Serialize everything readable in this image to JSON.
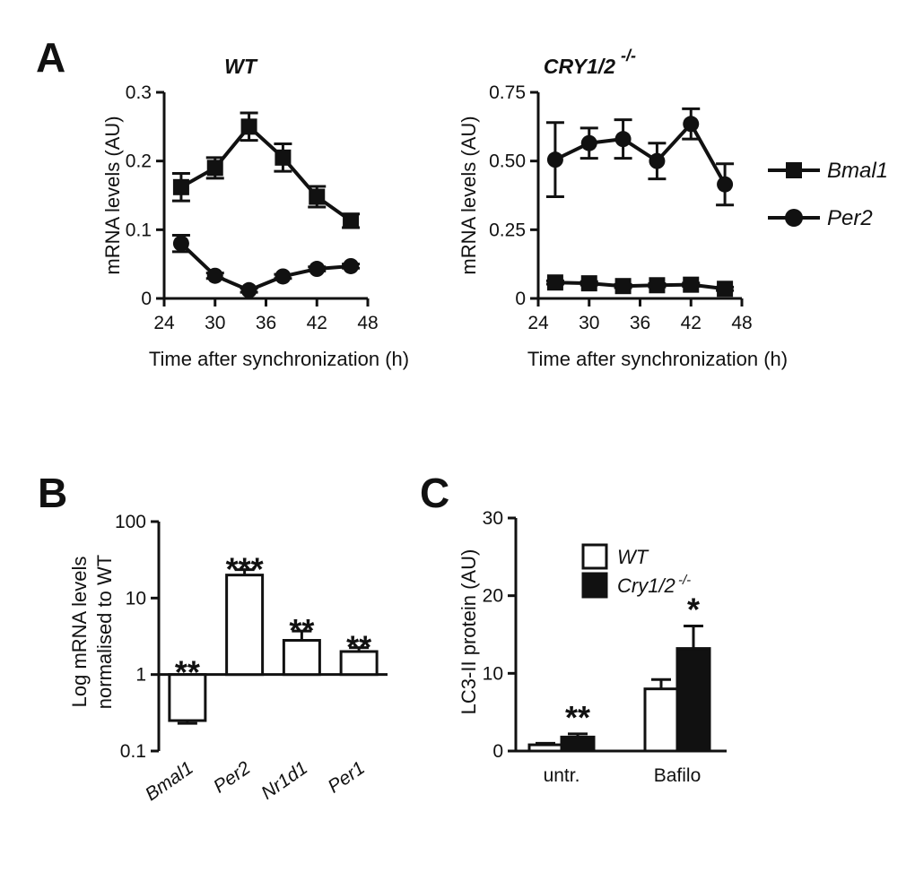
{
  "panels": {
    "a": "A",
    "b": "B",
    "c": "C"
  },
  "chart_data": [
    {
      "id": "A-WT",
      "type": "line",
      "title": "WT",
      "xlabel": "Time after synchronization (h)",
      "ylabel": "mRNA levels (AU)",
      "xlim": [
        24,
        48
      ],
      "ylim": [
        0,
        0.3
      ],
      "xticks": [
        "24",
        "30",
        "36",
        "42",
        "48"
      ],
      "yticks": [
        "0",
        "0.1",
        "0.2",
        "0.3"
      ],
      "x": [
        26,
        30,
        34,
        38,
        42,
        46
      ],
      "series": [
        {
          "name": "Bmal1",
          "marker": "square",
          "values": [
            0.162,
            0.19,
            0.25,
            0.205,
            0.148,
            0.113
          ],
          "errors": [
            0.02,
            0.015,
            0.02,
            0.02,
            0.015,
            0.01
          ]
        },
        {
          "name": "Per2",
          "marker": "circle",
          "values": [
            0.08,
            0.033,
            0.012,
            0.032,
            0.043,
            0.047
          ],
          "errors": [
            0.012,
            0.004,
            0.003,
            0.003,
            0.003,
            0.003
          ]
        }
      ]
    },
    {
      "id": "A-CRY",
      "type": "line",
      "title": "CRY1/2",
      "title_sup": "-/-",
      "xlabel": "Time after synchronization (h)",
      "ylabel": "mRNA levels (AU)",
      "xlim": [
        24,
        48
      ],
      "ylim": [
        0,
        0.75
      ],
      "xticks": [
        "24",
        "30",
        "36",
        "42",
        "48"
      ],
      "yticks": [
        "0",
        "0.25",
        "0.50",
        "0.75"
      ],
      "x": [
        26,
        30,
        34,
        38,
        42,
        46
      ],
      "series": [
        {
          "name": "Bmal1",
          "marker": "square",
          "values": [
            0.058,
            0.055,
            0.045,
            0.048,
            0.05,
            0.035
          ],
          "errors": [
            0.006,
            0.006,
            0.006,
            0.006,
            0.006,
            0.006
          ]
        },
        {
          "name": "Per2",
          "marker": "circle",
          "values": [
            0.505,
            0.565,
            0.58,
            0.5,
            0.635,
            0.415
          ],
          "errors": [
            0.135,
            0.055,
            0.07,
            0.065,
            0.055,
            0.075
          ]
        }
      ]
    },
    {
      "id": "B",
      "type": "bar",
      "scale": "log",
      "baseline": 1,
      "ylabel_lines": [
        "Log mRNA levels",
        "normalised to WT"
      ],
      "ylim": [
        0.1,
        100
      ],
      "yticks": [
        "0.1",
        "1",
        "10",
        "100"
      ],
      "ytick_values": [
        0.1,
        1,
        10,
        100
      ],
      "categories": [
        "Bmal1",
        "Per2",
        "Nr1d1",
        "Per1"
      ],
      "values": [
        0.25,
        20,
        2.8,
        2.0
      ],
      "errors_up": [
        0.27,
        23.5,
        3.7,
        2.25
      ],
      "errors_down": [
        0.23,
        17,
        2.5,
        1.85
      ],
      "significance": [
        "**",
        "***",
        "**",
        "**"
      ]
    },
    {
      "id": "C",
      "type": "bar",
      "ylabel": "LC3-II protein (AU)",
      "ylim": [
        0,
        30
      ],
      "yticks": [
        "0",
        "10",
        "20",
        "30"
      ],
      "categories": [
        "untr.",
        "Bafilo"
      ],
      "series": [
        {
          "name": "WT",
          "fill": "#ffffff",
          "values": [
            0.8,
            8.0
          ],
          "errors": [
            0.2,
            1.2
          ]
        },
        {
          "name": "Cry1/2",
          "name_sup": "-/-",
          "fill": "#111111",
          "values": [
            1.8,
            13.2
          ],
          "errors": [
            0.4,
            2.9
          ]
        }
      ],
      "significance": [
        "**",
        "*"
      ]
    }
  ]
}
